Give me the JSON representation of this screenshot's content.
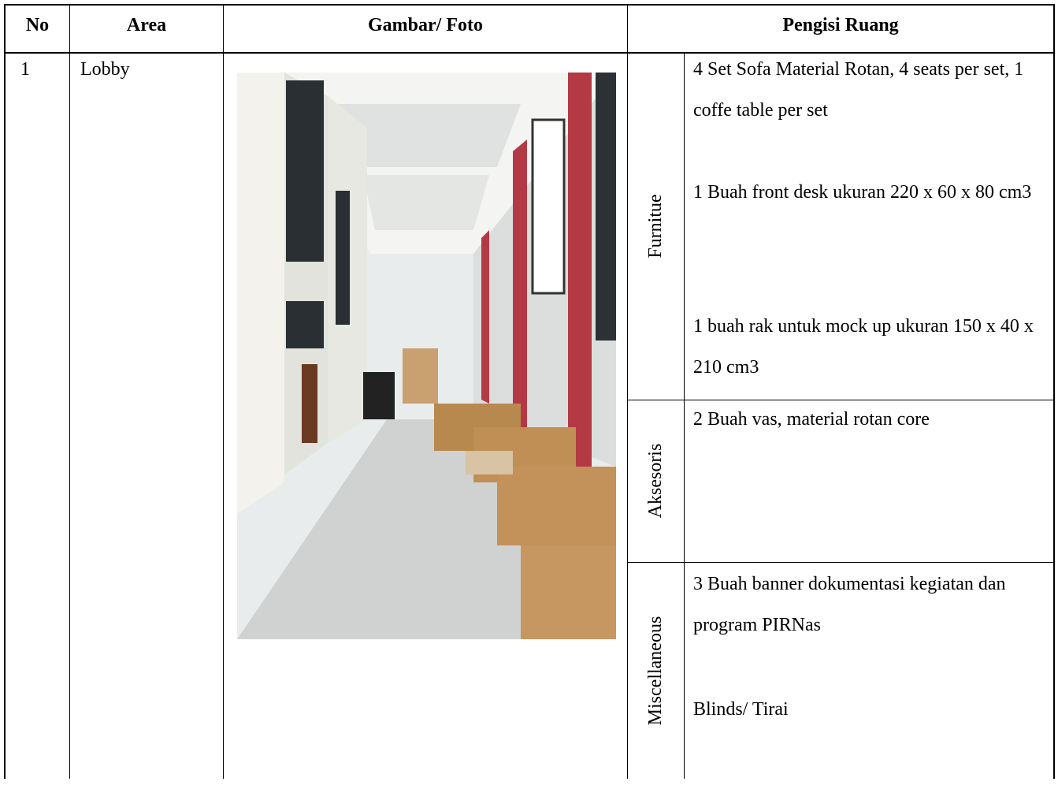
{
  "header": {
    "columns": [
      "No",
      "Area",
      "Gambar/ Foto",
      "Pengisi Ruang"
    ]
  },
  "rows": [
    {
      "no": "1",
      "area": "Lobby",
      "groups": [
        {
          "category": "Furnitue",
          "items": [
            "4 Set Sofa Material Rotan, 4 seats per set, 1 coffe table per set",
            "1 Buah front desk ukuran 220 x 60 x 80 cm3",
            "1 buah rak untuk mock up ukuran 150 x 40 x 210 cm3"
          ]
        },
        {
          "category": "Aksesoris",
          "items": [
            "2 Buah vas, material rotan core"
          ]
        },
        {
          "category": "Miscellaneous",
          "items": [
            "3 Buah banner dokumentasi kegiatan dan program PIRNas",
            "Blinds/ Tirai"
          ]
        }
      ]
    }
  ]
}
